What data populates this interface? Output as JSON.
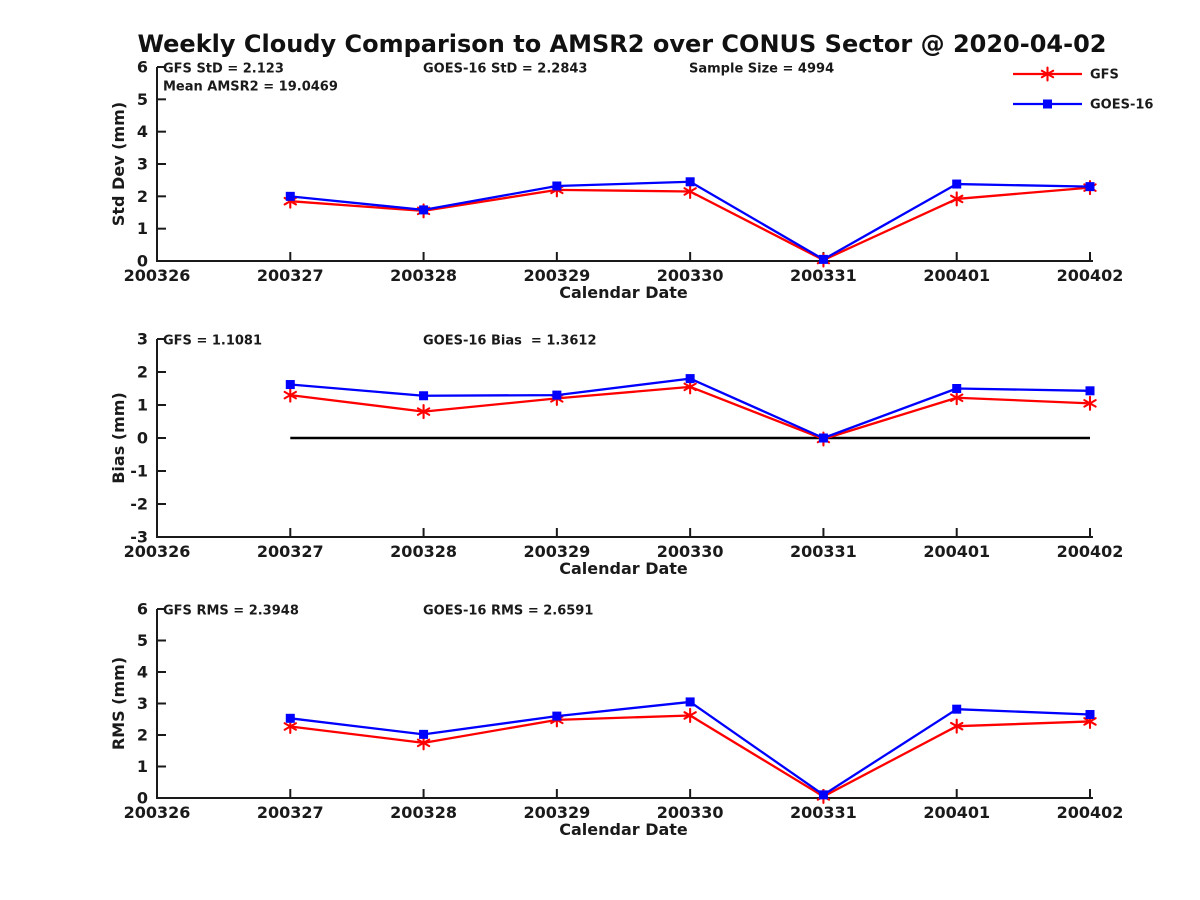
{
  "title": "Weekly Cloudy Comparison to AMSR2 over CONUS Sector @ 2020-04-02",
  "colors": {
    "gfs": "#ff0000",
    "goes16": "#0000ff",
    "axis": "#1a1a1a",
    "zero_line": "#000000",
    "background": "#ffffff"
  },
  "legend": {
    "entries": [
      {
        "label": "GFS",
        "color": "#ff0000",
        "marker": "asterisk"
      },
      {
        "label": "GOES-16",
        "color": "#0000ff",
        "marker": "square"
      }
    ]
  },
  "chart_data": [
    {
      "type": "line",
      "panel": "std_dev",
      "ylabel": "Std Dev (mm)",
      "xlabel": "Calendar Date",
      "ylim": [
        0,
        6
      ],
      "yticks": [
        0,
        1,
        2,
        3,
        4,
        5,
        6
      ],
      "x_ticks": [
        "200326",
        "200327",
        "200328",
        "200329",
        "200330",
        "200331",
        "200401",
        "200402"
      ],
      "x": [
        "200327",
        "200328",
        "200329",
        "200330",
        "200331",
        "200401",
        "200402"
      ],
      "series": [
        {
          "name": "GFS",
          "color": "#ff0000",
          "marker": "asterisk",
          "values": [
            1.85,
            1.55,
            2.2,
            2.15,
            0.03,
            1.92,
            2.27
          ]
        },
        {
          "name": "GOES-16",
          "color": "#0000ff",
          "marker": "square",
          "values": [
            2.0,
            1.58,
            2.32,
            2.45,
            0.05,
            2.38,
            2.3
          ]
        }
      ],
      "annotations": [
        {
          "text": "GFS StD = 2.123",
          "col": 0,
          "row": 0
        },
        {
          "text": "Mean AMSR2 = 19.0469",
          "col": 0,
          "row": 1
        },
        {
          "text": "GOES-16 StD = 2.2843",
          "col": 1,
          "row": 0
        },
        {
          "text": "Sample Size = 4994",
          "col": 2,
          "row": 0
        }
      ],
      "zero_line": false,
      "show_legend": true,
      "grid": false,
      "legend_position": "top-right"
    },
    {
      "type": "line",
      "panel": "bias",
      "ylabel": "Bias (mm)",
      "xlabel": "Calendar Date",
      "ylim": [
        -3,
        3
      ],
      "yticks": [
        -3,
        -2,
        -1,
        0,
        1,
        2,
        3
      ],
      "x_ticks": [
        "200326",
        "200327",
        "200328",
        "200329",
        "200330",
        "200331",
        "200401",
        "200402"
      ],
      "x": [
        "200327",
        "200328",
        "200329",
        "200330",
        "200331",
        "200401",
        "200402"
      ],
      "series": [
        {
          "name": "GFS",
          "color": "#ff0000",
          "marker": "asterisk",
          "values": [
            1.3,
            0.8,
            1.2,
            1.55,
            -0.03,
            1.22,
            1.05
          ]
        },
        {
          "name": "GOES-16",
          "color": "#0000ff",
          "marker": "square",
          "values": [
            1.62,
            1.28,
            1.3,
            1.8,
            0.0,
            1.5,
            1.43
          ]
        }
      ],
      "annotations": [
        {
          "text": "GFS = 1.1081",
          "col": 0,
          "row": 0
        },
        {
          "text": "GOES-16 Bias  = 1.3612",
          "col": 1,
          "row": 0
        }
      ],
      "zero_line": true,
      "show_legend": false,
      "grid": false
    },
    {
      "type": "line",
      "panel": "rms",
      "ylabel": "RMS (mm)",
      "xlabel": "Calendar Date",
      "ylim": [
        0,
        6
      ],
      "yticks": [
        0,
        1,
        2,
        3,
        4,
        5,
        6
      ],
      "x_ticks": [
        "200326",
        "200327",
        "200328",
        "200329",
        "200330",
        "200331",
        "200401",
        "200402"
      ],
      "x": [
        "200327",
        "200328",
        "200329",
        "200330",
        "200331",
        "200401",
        "200402"
      ],
      "series": [
        {
          "name": "GFS",
          "color": "#ff0000",
          "marker": "asterisk",
          "values": [
            2.27,
            1.75,
            2.48,
            2.62,
            0.05,
            2.28,
            2.43
          ]
        },
        {
          "name": "GOES-16",
          "color": "#0000ff",
          "marker": "square",
          "values": [
            2.53,
            2.02,
            2.6,
            3.05,
            0.1,
            2.82,
            2.65
          ]
        }
      ],
      "annotations": [
        {
          "text": "GFS RMS = 2.3948",
          "col": 0,
          "row": 0
        },
        {
          "text": "GOES-16 RMS = 2.6591",
          "col": 1,
          "row": 0
        }
      ],
      "zero_line": false,
      "show_legend": false,
      "grid": false
    }
  ]
}
